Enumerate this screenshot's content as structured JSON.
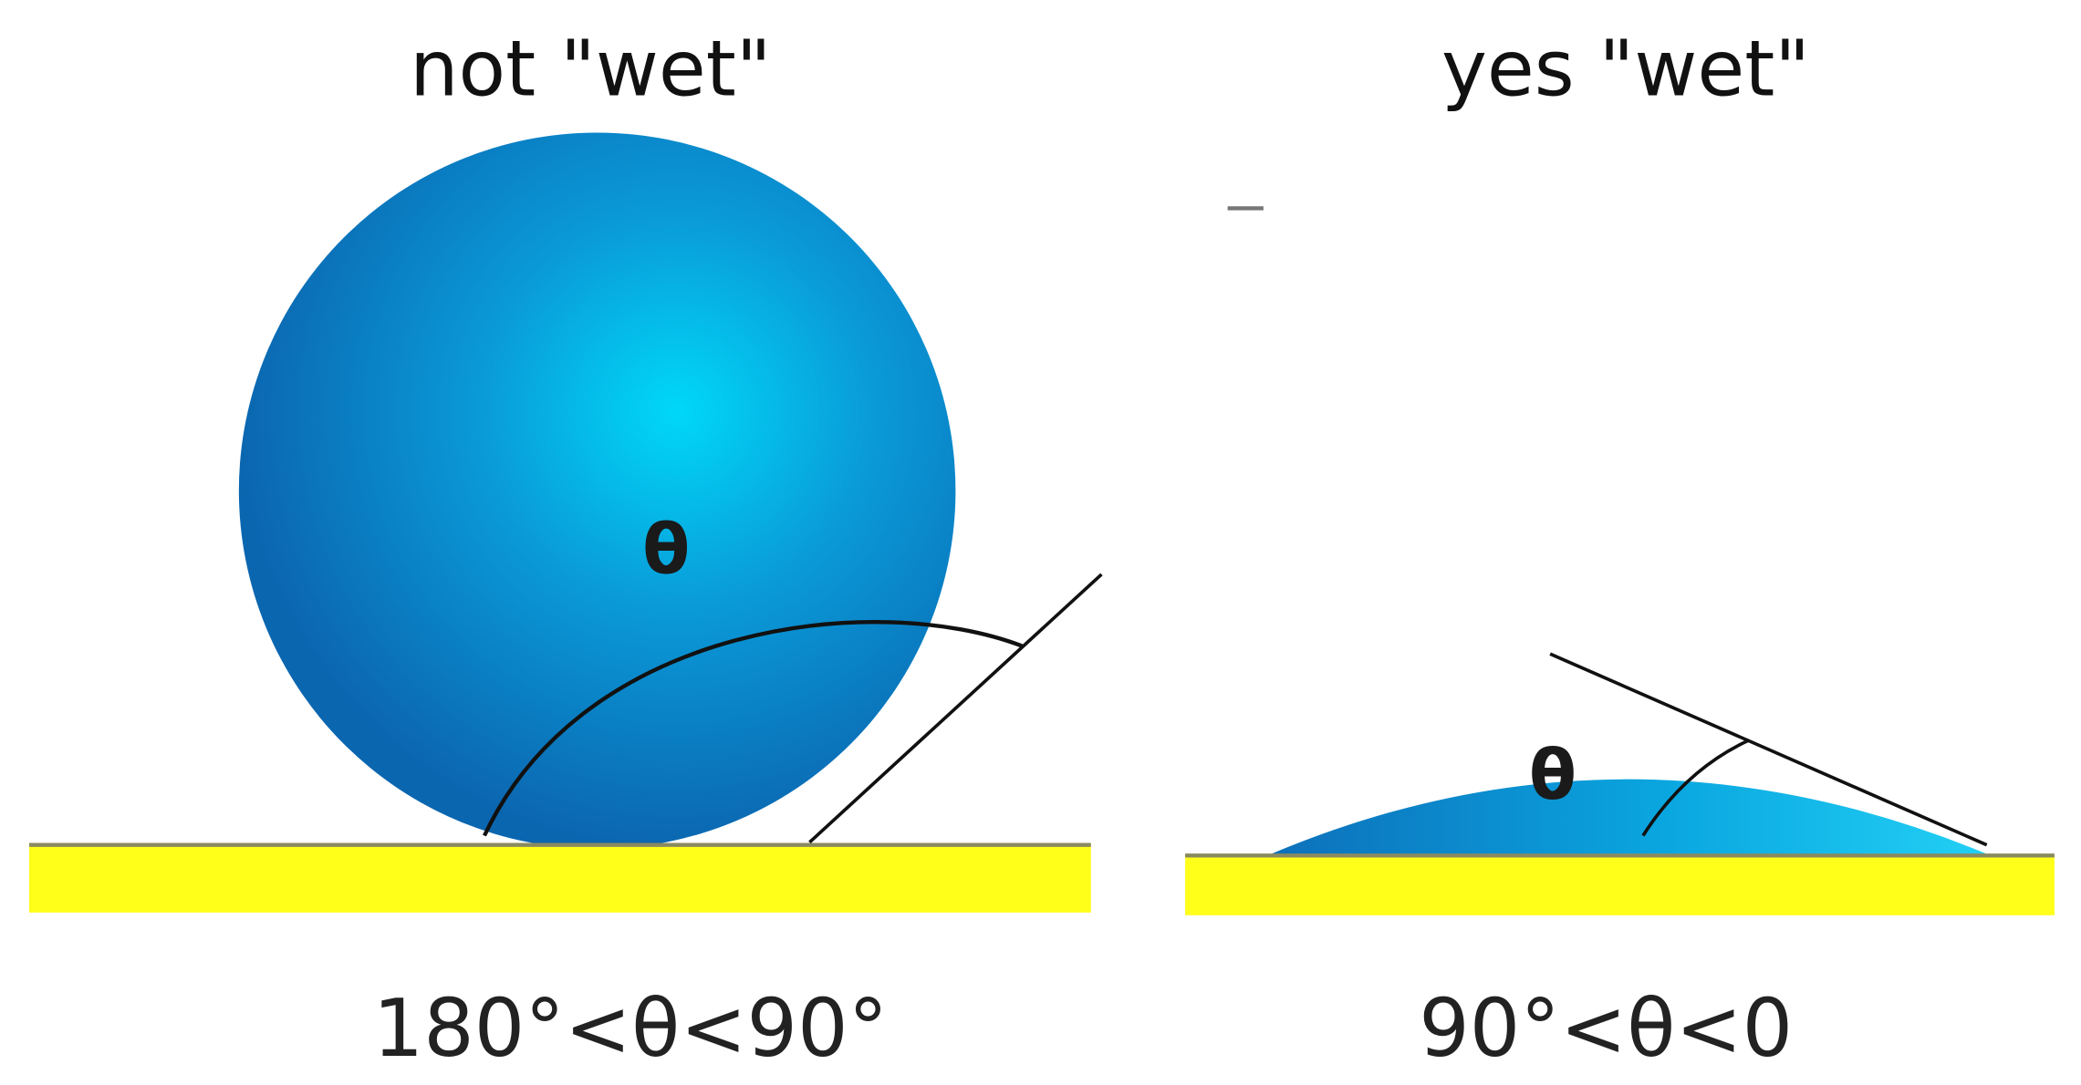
{
  "panels": [
    {
      "title": "not \"wet\"",
      "angle_label": "θ",
      "range": "180°<θ<90°"
    },
    {
      "title": "yes \"wet\"",
      "angle_label": "θ",
      "range": "90°<θ<0"
    }
  ]
}
